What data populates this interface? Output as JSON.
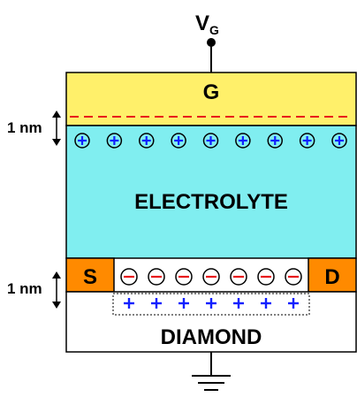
{
  "gate_terminal": {
    "label": "V",
    "subscript": "G"
  },
  "layers": {
    "gate": {
      "label": "G"
    },
    "electrolyte": {
      "label": "ELECTROLYTE"
    },
    "substrate": {
      "label": "DIAMOND"
    },
    "source": {
      "label": "S"
    },
    "drain": {
      "label": "D"
    }
  },
  "dimensions": {
    "gate_double_layer": "1 nm",
    "channel_double_layer": "1 nm"
  },
  "charges": {
    "positive_ions": {
      "count": 9,
      "symbol": "+"
    },
    "negative_ions": {
      "count": 7,
      "symbol": "−"
    },
    "holes": {
      "count": 7,
      "symbol": "+"
    }
  },
  "colors": {
    "gate": "#fff06a",
    "electrolyte": "#80eef0",
    "contact": "#ff8a00",
    "substrate": "#ffffff",
    "gate_charge": "#e8141a",
    "hole": "#1020ff",
    "outline": "#000000"
  }
}
